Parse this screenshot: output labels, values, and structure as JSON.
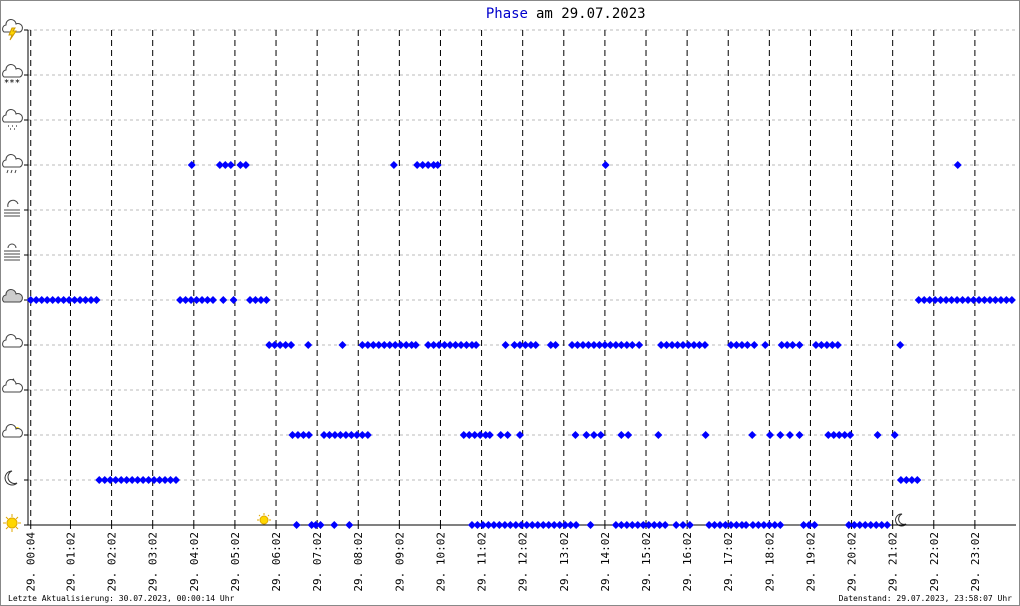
{
  "chart_data": {
    "type": "scatter",
    "title": "Phase",
    "title_date": "am 29.07.2023",
    "footer_left": "Letzte Aktualisierung: 30.07.2023, 00:00:14 Uhr",
    "footer_right": "Datenstand: 29.07.2023, 23:58:07 Uhr",
    "color": "#0000ff",
    "grid": true,
    "xlim": [
      0,
      1442
    ],
    "ylim": [
      0,
      11
    ],
    "yticks": [
      0,
      1,
      2,
      3,
      4,
      5,
      6,
      7,
      8,
      9,
      10,
      11
    ],
    "xticks": [
      {
        "value": 4,
        "label": "29. 00:04"
      },
      {
        "value": 62,
        "label": "29. 01:02"
      },
      {
        "value": 122,
        "label": "29. 02:02"
      },
      {
        "value": 182,
        "label": "29. 03:02"
      },
      {
        "value": 242,
        "label": "29. 04:02"
      },
      {
        "value": 302,
        "label": "29. 05:02"
      },
      {
        "value": 362,
        "label": "29. 06:02"
      },
      {
        "value": 422,
        "label": "29. 07:02"
      },
      {
        "value": 482,
        "label": "29. 08:02"
      },
      {
        "value": 542,
        "label": "29. 09:02"
      },
      {
        "value": 602,
        "label": "29. 10:02"
      },
      {
        "value": 662,
        "label": "29. 11:02"
      },
      {
        "value": 722,
        "label": "29. 12:02"
      },
      {
        "value": 782,
        "label": "29. 13:02"
      },
      {
        "value": 842,
        "label": "29. 14:02"
      },
      {
        "value": 902,
        "label": "29. 15:02"
      },
      {
        "value": 962,
        "label": "29. 16:02"
      },
      {
        "value": 1022,
        "label": "29. 17:02"
      },
      {
        "value": 1082,
        "label": "29. 18:02"
      },
      {
        "value": 1142,
        "label": "29. 19:02"
      },
      {
        "value": 1202,
        "label": "29. 20:02"
      },
      {
        "value": 1262,
        "label": "29. 21:02"
      },
      {
        "value": 1322,
        "label": "29. 22:02"
      },
      {
        "value": 1382,
        "label": "29. 23:02"
      }
    ],
    "x": [
      4,
      12,
      20,
      28,
      36,
      44,
      52,
      60,
      68,
      76,
      84,
      92,
      100,
      104,
      112,
      120,
      128,
      136,
      144,
      152,
      160,
      168,
      176,
      184,
      192,
      200,
      208,
      216,
      222,
      230,
      238,
      246,
      254,
      262,
      270,
      285,
      300,
      324,
      332,
      340,
      348,
      239,
      280,
      288,
      296,
      310,
      318,
      352,
      360,
      368,
      376,
      384,
      409,
      459,
      386,
      394,
      402,
      410,
      432,
      440,
      448,
      456,
      464,
      472,
      480,
      488,
      496,
      392,
      414,
      420,
      427,
      447,
      469,
      488,
      496,
      504,
      512,
      520,
      528,
      536,
      544,
      552,
      560,
      566,
      534,
      568,
      576,
      584,
      592,
      598,
      584,
      592,
      600,
      608,
      616,
      624,
      632,
      640,
      648,
      654,
      697,
      710,
      718,
      726,
      734,
      741,
      763,
      770,
      794,
      802,
      810,
      818,
      826,
      834,
      842,
      850,
      858,
      866,
      874,
      882,
      892,
      924,
      932,
      940,
      948,
      956,
      964,
      972,
      980,
      988,
      1026,
      1034,
      1042,
      1050,
      1060,
      1076,
      1100,
      1108,
      1116,
      1126,
      1150,
      1158,
      1166,
      1174,
      1182,
      1273,
      636,
      644,
      652,
      660,
      668,
      674,
      690,
      700,
      718,
      799,
      815,
      826,
      836,
      866,
      876,
      920,
      989,
      1057,
      1083,
      1098,
      1112,
      1126,
      1168,
      1176,
      1184,
      1192,
      1200,
      1240,
      1265,
      843,
      1357,
      648,
      656,
      664,
      672,
      680,
      688,
      696,
      704,
      712,
      720,
      728,
      736,
      744,
      752,
      760,
      768,
      776,
      784,
      792,
      800,
      821,
      858,
      866,
      874,
      882,
      890,
      898,
      906,
      914,
      922,
      930,
      946,
      956,
      966,
      994,
      1002,
      1010,
      1018,
      1026,
      1034,
      1042,
      1048,
      1058,
      1066,
      1074,
      1082,
      1090,
      1098,
      1132,
      1140,
      1148,
      1198,
      1206,
      1214,
      1222,
      1230,
      1238,
      1246,
      1254,
      1274,
      1282,
      1290,
      1298,
      1300,
      1308,
      1316,
      1324,
      1332,
      1340,
      1348,
      1356,
      1364,
      1372,
      1380,
      1388,
      1396,
      1404,
      1412,
      1420,
      1428,
      1436
    ],
    "values": [
      5,
      5,
      5,
      5,
      5,
      5,
      5,
      5,
      5,
      5,
      5,
      5,
      5,
      1,
      1,
      1,
      1,
      1,
      1,
      1,
      1,
      1,
      1,
      1,
      1,
      1,
      1,
      1,
      5,
      5,
      5,
      5,
      5,
      5,
      5,
      5,
      5,
      5,
      5,
      5,
      5,
      8,
      8,
      8,
      8,
      8,
      8,
      4,
      4,
      4,
      4,
      4,
      4,
      4,
      2,
      2,
      2,
      2,
      2,
      2,
      2,
      2,
      2,
      2,
      2,
      2,
      2,
      0,
      0,
      0,
      0,
      0,
      0,
      4,
      4,
      4,
      4,
      4,
      4,
      4,
      4,
      4,
      4,
      4,
      8,
      8,
      8,
      8,
      8,
      8,
      4,
      4,
      4,
      4,
      4,
      4,
      4,
      4,
      4,
      4,
      4,
      4,
      4,
      4,
      4,
      4,
      4,
      4,
      4,
      4,
      4,
      4,
      4,
      4,
      4,
      4,
      4,
      4,
      4,
      4,
      4,
      4,
      4,
      4,
      4,
      4,
      4,
      4,
      4,
      4,
      4,
      4,
      4,
      4,
      4,
      4,
      4,
      4,
      4,
      4,
      4,
      4,
      4,
      4,
      4,
      4,
      2,
      2,
      2,
      2,
      2,
      2,
      2,
      2,
      2,
      2,
      2,
      2,
      2,
      2,
      2,
      2,
      2,
      2,
      2,
      2,
      2,
      2,
      2,
      2,
      2,
      2,
      2,
      2,
      2,
      8,
      8,
      0,
      0,
      0,
      0,
      0,
      0,
      0,
      0,
      0,
      0,
      0,
      0,
      0,
      0,
      0,
      0,
      0,
      0,
      0,
      0,
      0,
      0,
      0,
      0,
      0,
      0,
      0,
      0,
      0,
      0,
      0,
      0,
      0,
      0,
      0,
      0,
      0,
      0,
      0,
      0,
      0,
      0,
      0,
      0,
      0,
      0,
      0,
      0,
      0,
      0,
      0,
      0,
      0,
      0,
      0,
      0,
      0,
      0,
      0,
      1,
      1,
      1,
      1,
      5,
      5,
      5,
      5,
      5,
      5,
      5,
      5,
      5,
      5,
      5,
      5,
      5,
      5,
      5,
      5,
      5,
      5
    ]
  }
}
